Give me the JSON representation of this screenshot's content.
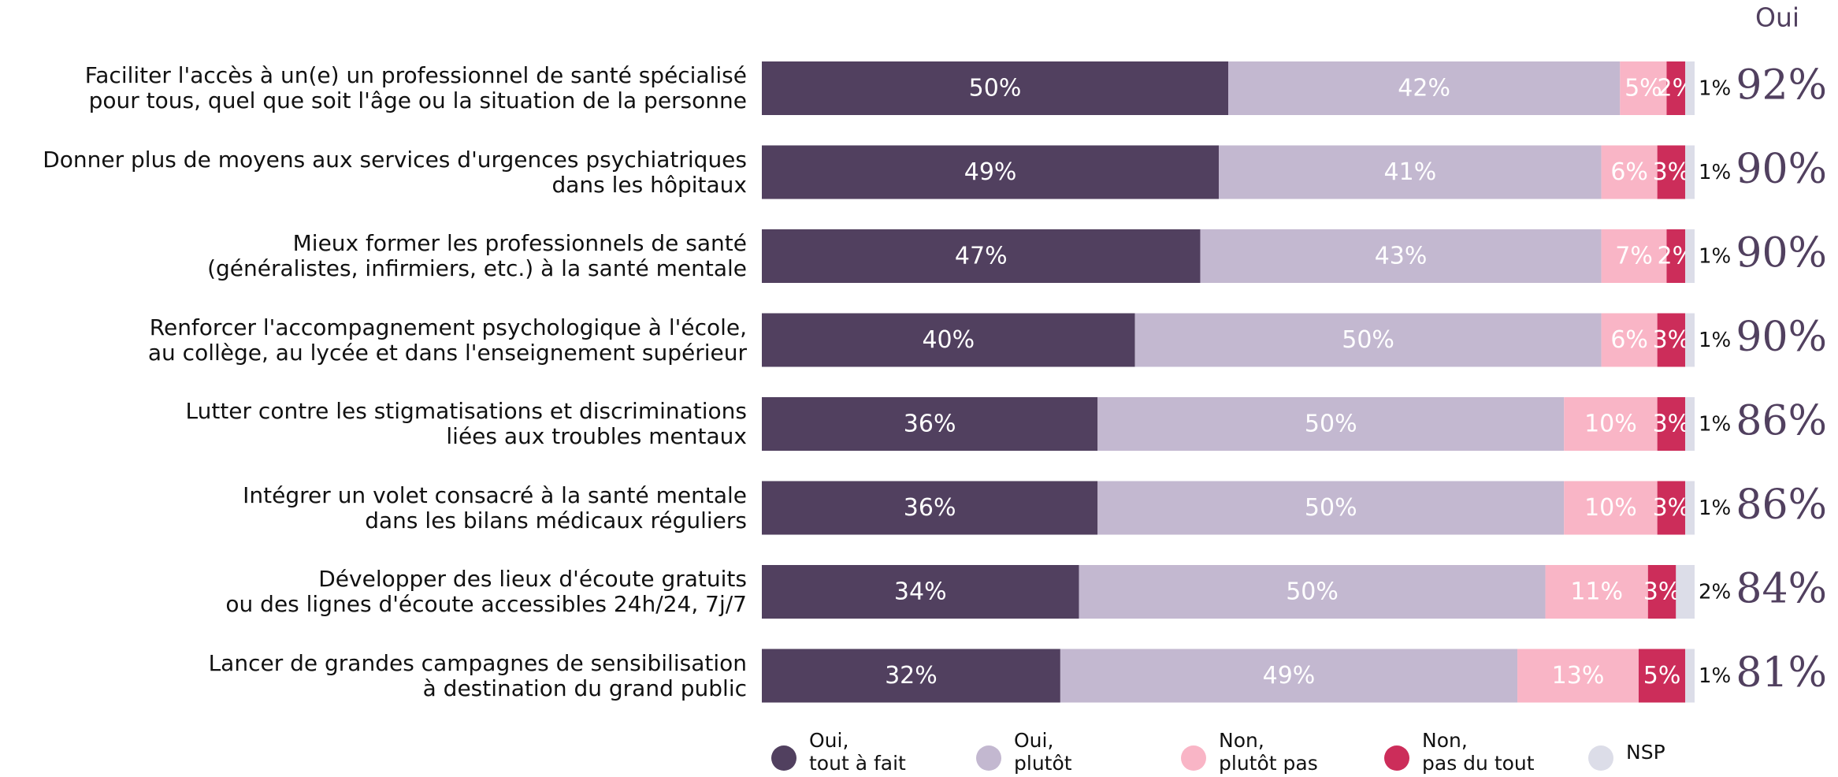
{
  "chart_data": {
    "type": "stacked-bar-horizontal",
    "categories": [
      "Faciliter l'accès à un(e) un professionnel de santé spécialisé\npour tous, quel que soit l'âge ou la situation de la personne",
      "Donner plus de moyens aux services d'urgences psychiatriques\ndans les hôpitaux",
      "Mieux former les professionnels de santé\n(généralistes, infirmiers, etc.) à la santé mentale",
      "Renforcer l'accompagnement psychologique à l'école,\nau collège, au lycée et dans l'enseignement supérieur",
      "Lutter contre les stigmatisations et discriminations\nliées aux troubles mentaux",
      "Intégrer un volet consacré à la santé mentale\ndans les bilans médicaux réguliers",
      "Développer des lieux d'écoute gratuits\nou des lignes d'écoute accessibles 24h/24, 7j/7",
      "Lancer de grandes campagnes de sensibilisation\nà destination du grand public"
    ],
    "xlim": [
      0,
      100
    ],
    "series": [
      {
        "name": "Oui,\ntout à fait",
        "color": "#51405f",
        "values": [
          50,
          49,
          47,
          40,
          36,
          36,
          34,
          32
        ],
        "value_labels": [
          "50%",
          "49%",
          "47%",
          "40%",
          "36%",
          "36%",
          "34%",
          "32%"
        ]
      },
      {
        "name": "Oui,\nplutôt",
        "color": "#c3b8d0",
        "values": [
          42,
          41,
          43,
          50,
          50,
          50,
          50,
          49
        ],
        "value_labels": [
          "42%",
          "41%",
          "43%",
          "50%",
          "50%",
          "50%",
          "50%",
          "49%"
        ]
      },
      {
        "name": "Non,\nplutôt pas",
        "color": "#f9b5c6",
        "values": [
          5,
          6,
          7,
          6,
          10,
          10,
          11,
          13
        ],
        "value_labels": [
          "5%",
          "6%",
          "7%",
          "6%",
          "10%",
          "10%",
          "11%",
          "13%"
        ]
      },
      {
        "name": "Non,\npas du tout",
        "color": "#cc2d5a",
        "values": [
          2,
          3,
          2,
          3,
          3,
          3,
          3,
          5
        ],
        "value_labels": [
          "2%",
          "3%",
          "2%",
          "3%",
          "3%",
          "3%",
          "3%",
          "5%"
        ]
      },
      {
        "name": "NSP",
        "color": "#dcdde8",
        "values": [
          1,
          1,
          1,
          1,
          1,
          1,
          2,
          1
        ],
        "value_labels": [
          "1%",
          "1%",
          "1%",
          "1%",
          "1%",
          "1%",
          "2%",
          "1%"
        ]
      }
    ],
    "totals": {
      "label": "Oui",
      "values": [
        92,
        90,
        90,
        90,
        86,
        86,
        84,
        81
      ],
      "value_labels": [
        "92%",
        "90%",
        "90%",
        "90%",
        "86%",
        "86%",
        "84%",
        "81%"
      ]
    }
  }
}
